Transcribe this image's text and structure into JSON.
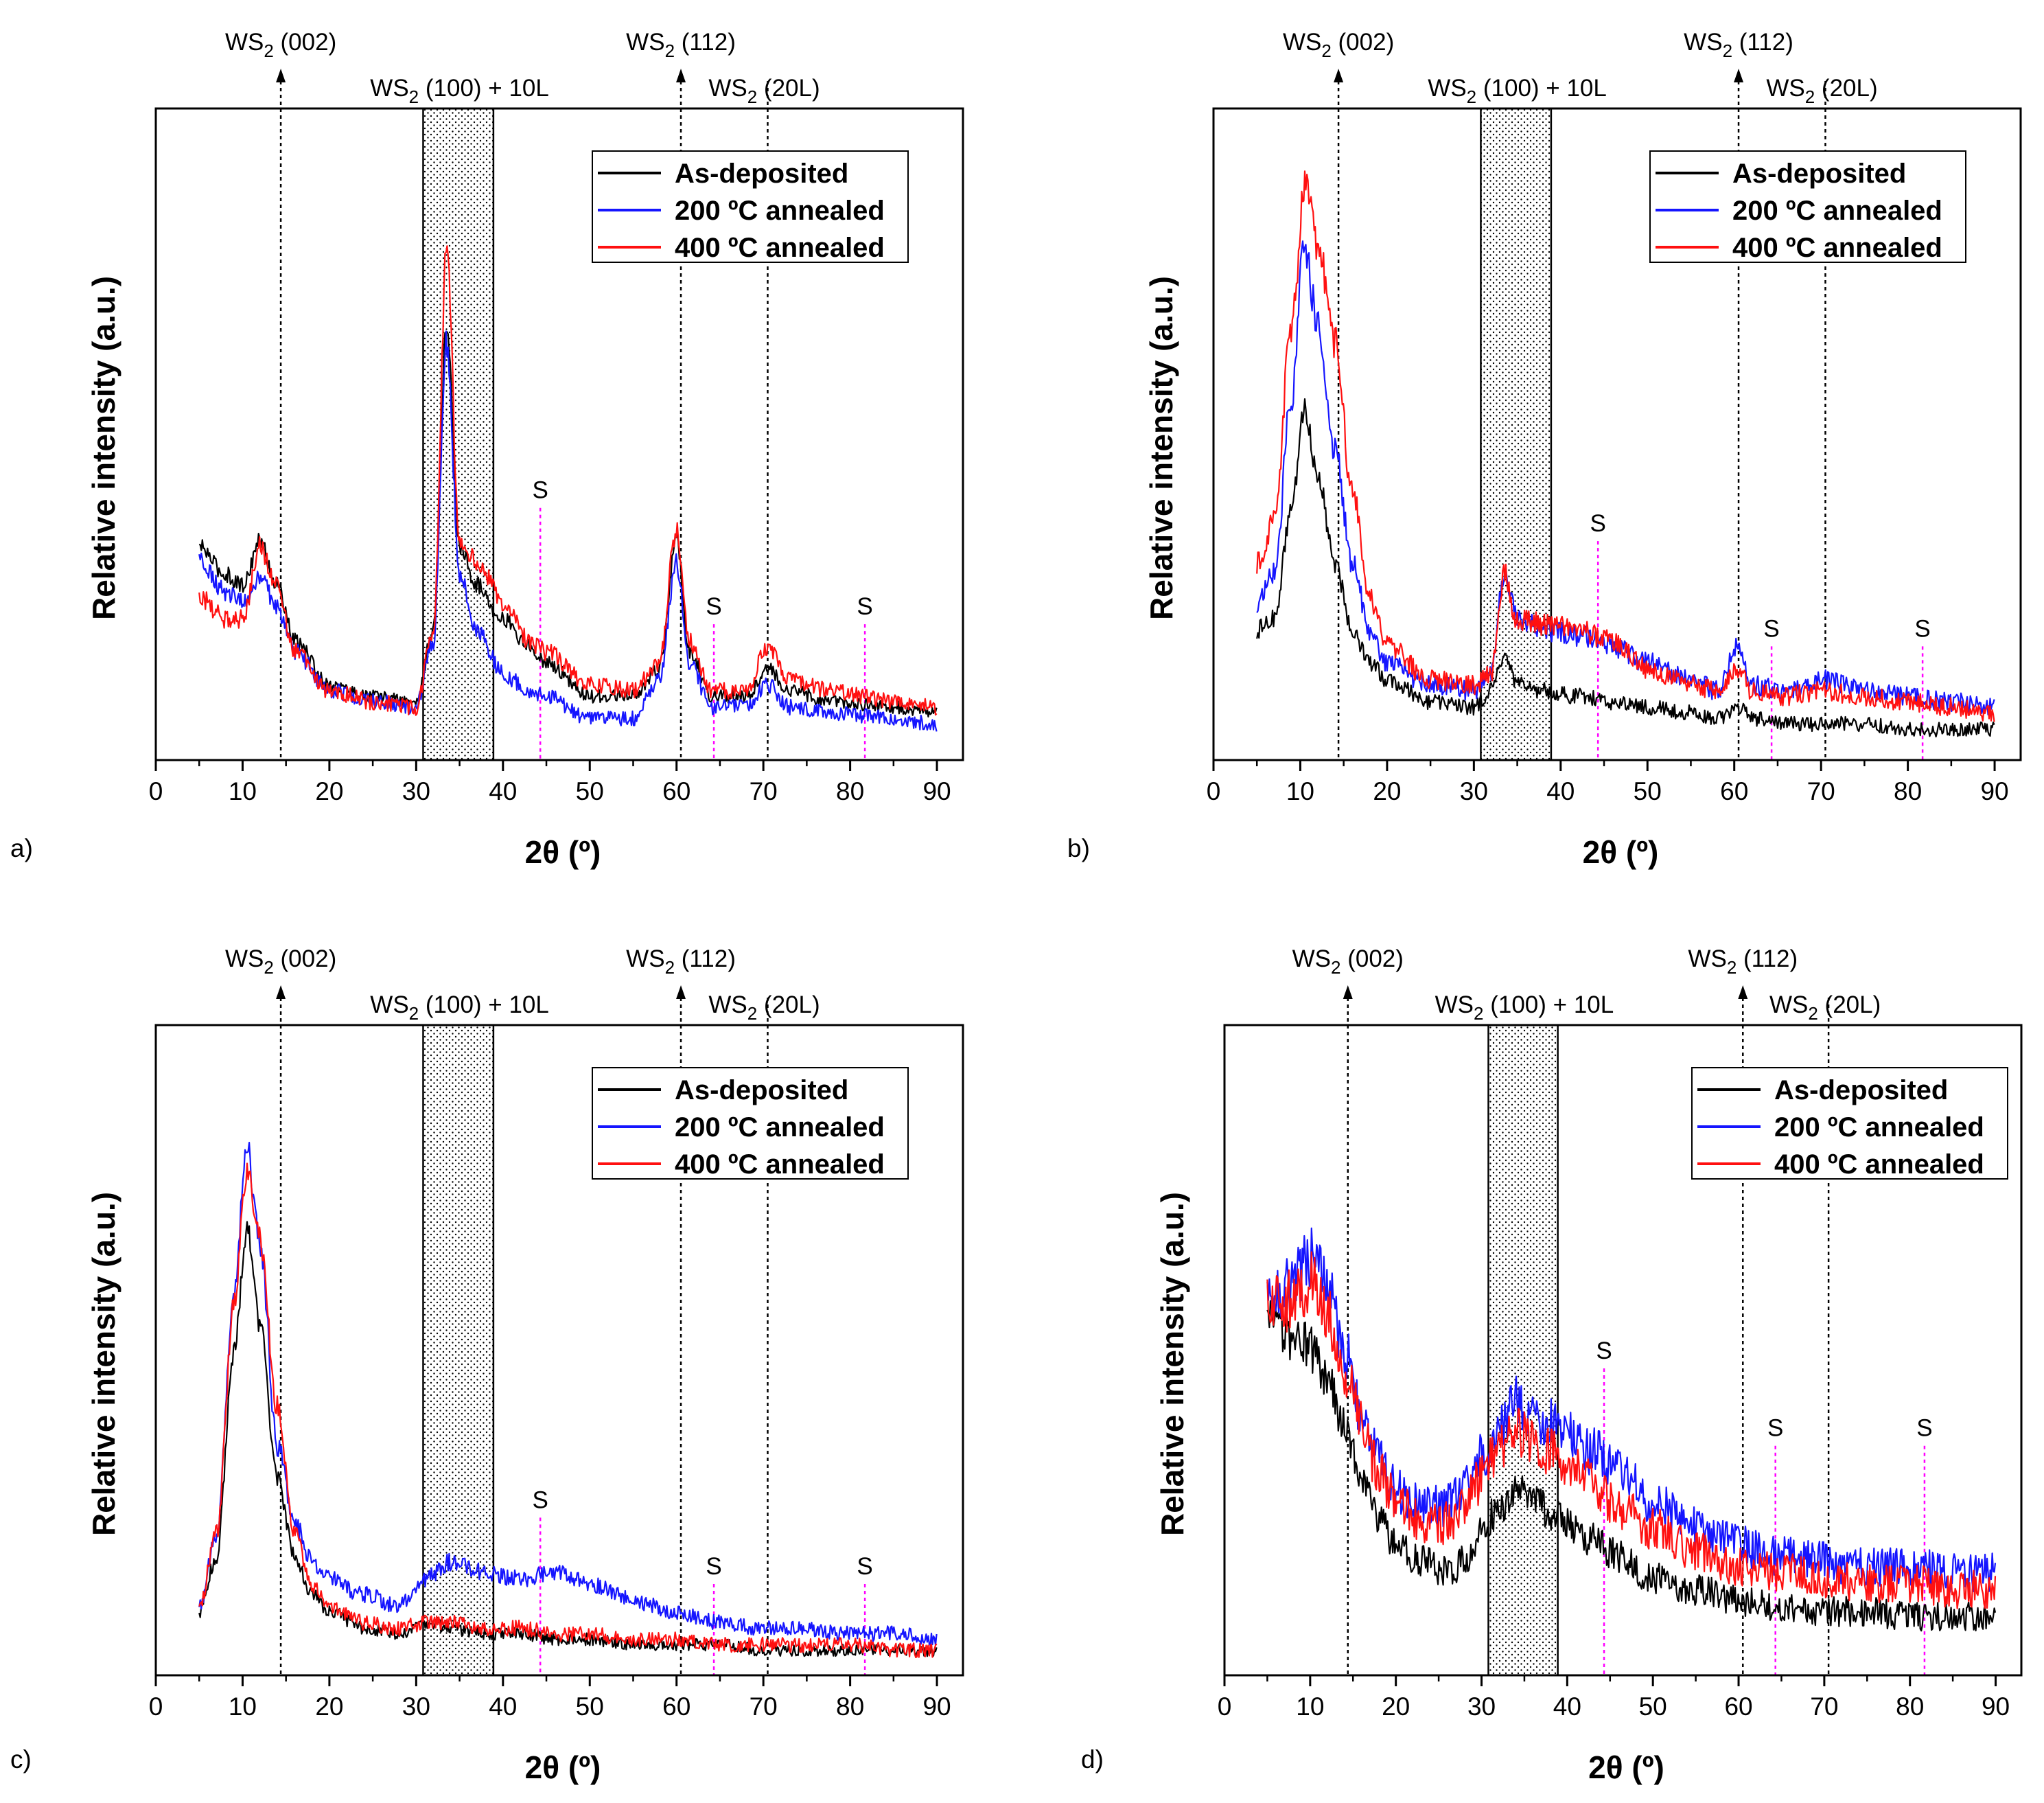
{
  "figure": {
    "description_type": "XRD patterns (4 panels)",
    "series_colors": {
      "As-deposited": "#000000",
      "200 ºC annealed": "#1515ff",
      "400 ºC annealed": "#ff1010"
    },
    "guide_line_color": "#000000",
    "substrate_line_color": "#ff00ff"
  },
  "chart_data": [
    {
      "type": "line",
      "panel_label": "a)",
      "xlabel": "2θ (º)",
      "ylabel": "Relative intensity (a.u.)",
      "xlim": [
        0,
        93
      ],
      "xticks": [
        0,
        10,
        20,
        30,
        40,
        50,
        60,
        70,
        80,
        90
      ],
      "ylim": [
        0,
        100
      ],
      "peak_labels": [
        {
          "label": "WS",
          "sub": "2",
          "suffix": " (002)",
          "x": 14.4,
          "arrow": true
        },
        {
          "label": "WS",
          "sub": "2",
          "suffix": " (100) + 10L",
          "x": 35,
          "arrow": false
        },
        {
          "label": "WS",
          "sub": "2",
          "suffix": " (112)",
          "x": 60.5,
          "arrow": true
        },
        {
          "label": "WS",
          "sub": "2",
          "suffix": " (20L)",
          "x": 70.5,
          "arrow": false
        }
      ],
      "shaded_band": [
        30.8,
        38.9
      ],
      "reference_lines": [
        14.4,
        60.5,
        70.5
      ],
      "substrate_peaks": [
        {
          "label": "S",
          "x": 44.3,
          "y": 42
        },
        {
          "label": "S",
          "x": 64.3,
          "y": 21
        },
        {
          "label": "S",
          "x": 81.7,
          "y": 21
        }
      ],
      "legend": [
        "As-deposited",
        "200 ºC annealed",
        "400 ºC annealed"
      ],
      "series": [
        {
          "name": "As-deposited",
          "x": [
            5,
            8,
            10,
            12,
            14,
            16,
            20,
            25,
            30,
            32,
            33.5,
            35,
            37,
            40,
            43,
            45,
            50,
            55,
            58,
            60,
            61.5,
            64,
            68,
            70.5,
            73,
            78,
            85,
            90
          ],
          "values": [
            35,
            30,
            28,
            36,
            28,
            18,
            10,
            8,
            7,
            20,
            75,
            35,
            28,
            22,
            17,
            14,
            8,
            8,
            13,
            36,
            16,
            8,
            8,
            13,
            9,
            7,
            6,
            5
          ]
        },
        {
          "name": "200 ºC annealed",
          "x": [
            5,
            8,
            10,
            12,
            14,
            16,
            20,
            25,
            30,
            32,
            33.5,
            35,
            37,
            40,
            43,
            45,
            50,
            55,
            58,
            60,
            61.5,
            64,
            68,
            70.5,
            73,
            78,
            85,
            90
          ],
          "values": [
            33,
            27,
            25,
            29,
            24,
            16,
            9,
            7,
            6,
            18,
            72,
            30,
            20,
            12,
            9,
            8,
            4,
            4,
            11,
            32,
            14,
            6,
            6,
            10,
            6,
            5,
            4,
            3
          ]
        },
        {
          "name": "400 ºC annealed",
          "x": [
            5,
            8,
            10,
            12,
            14,
            16,
            20,
            25,
            30,
            32,
            33.5,
            35,
            37,
            40,
            43,
            45,
            50,
            55,
            58,
            60,
            61.5,
            64,
            68,
            70.5,
            73,
            78,
            85,
            90
          ],
          "values": [
            26,
            22,
            22,
            35,
            28,
            16,
            9,
            7,
            6,
            20,
            88,
            36,
            32,
            25,
            18,
            16,
            10,
            9,
            14,
            38,
            18,
            9,
            9,
            17,
            11,
            9,
            7,
            6
          ]
        }
      ]
    },
    {
      "type": "line",
      "panel_label": "b)",
      "xlabel": "2θ (º)",
      "ylabel": "Relative intensity (a.u.)",
      "xlim": [
        0,
        93
      ],
      "xticks": [
        0,
        10,
        20,
        30,
        40,
        50,
        60,
        70,
        80,
        90
      ],
      "ylim": [
        0,
        100
      ],
      "peak_labels": [
        {
          "label": "WS",
          "sub": "2",
          "suffix": " (002)",
          "x": 14.4,
          "arrow": true
        },
        {
          "label": "WS",
          "sub": "2",
          "suffix": " (100) + 10L",
          "x": 35,
          "arrow": false
        },
        {
          "label": "WS",
          "sub": "2",
          "suffix": " (112)",
          "x": 60.5,
          "arrow": true
        },
        {
          "label": "WS",
          "sub": "2",
          "suffix": " (20L)",
          "x": 70.5,
          "arrow": false
        }
      ],
      "shaded_band": [
        30.8,
        38.9
      ],
      "reference_lines": [
        14.4,
        60.5,
        70.5
      ],
      "substrate_peaks": [
        {
          "label": "S",
          "x": 44.3,
          "y": 36
        },
        {
          "label": "S",
          "x": 64.3,
          "y": 17
        },
        {
          "label": "S",
          "x": 81.7,
          "y": 17
        }
      ],
      "legend": [
        "As-deposited",
        "200 ºC annealed",
        "400 ºC annealed"
      ],
      "series": [
        {
          "name": "As-deposited",
          "x": [
            5,
            7,
            9,
            10.5,
            12,
            14,
            16,
            18,
            20,
            25,
            30,
            32,
            33.5,
            35,
            38,
            42,
            46,
            50,
            55,
            58,
            60.5,
            62,
            66,
            70,
            75,
            80,
            85,
            90
          ],
          "values": [
            20,
            22,
            42,
            60,
            48,
            32,
            20,
            14,
            11,
            7,
            6,
            9,
            15,
            10,
            9,
            8,
            7,
            6,
            5,
            4,
            6,
            4,
            3,
            3,
            3,
            2,
            2,
            2
          ]
        },
        {
          "name": "200 ºC annealed",
          "x": [
            5,
            7,
            9,
            10.5,
            12,
            14,
            16,
            18,
            20,
            25,
            30,
            32,
            33.5,
            35,
            38,
            42,
            46,
            50,
            55,
            58,
            60.5,
            62,
            66,
            70,
            75,
            80,
            85,
            90
          ],
          "values": [
            25,
            30,
            62,
            90,
            75,
            52,
            32,
            20,
            14,
            10,
            9,
            12,
            30,
            22,
            20,
            19,
            17,
            14,
            11,
            9,
            17,
            10,
            9,
            11,
            9,
            8,
            7,
            6
          ]
        },
        {
          "name": "400 ºC annealed",
          "x": [
            5,
            7,
            9,
            10.5,
            12,
            14,
            16,
            18,
            20,
            25,
            30,
            32,
            33.5,
            35,
            38,
            42,
            46,
            50,
            55,
            58,
            60.5,
            62,
            66,
            70,
            75,
            80,
            85,
            90
          ],
          "values": [
            32,
            40,
            75,
            100,
            90,
            72,
            45,
            26,
            17,
            11,
            10,
            12,
            30,
            22,
            21,
            20,
            18,
            13,
            10,
            9,
            13,
            9,
            8,
            9,
            8,
            7,
            6,
            5
          ]
        }
      ]
    },
    {
      "type": "line",
      "panel_label": "c)",
      "xlabel": "2θ (º)",
      "ylabel": "Relative intensity (a.u.)",
      "xlim": [
        0,
        93
      ],
      "xticks": [
        0,
        10,
        20,
        30,
        40,
        50,
        60,
        70,
        80,
        90
      ],
      "ylim": [
        0,
        100
      ],
      "peak_labels": [
        {
          "label": "WS",
          "sub": "2",
          "suffix": " (002)",
          "x": 14.4,
          "arrow": true
        },
        {
          "label": "WS",
          "sub": "2",
          "suffix": " (100) + 10L",
          "x": 35,
          "arrow": false
        },
        {
          "label": "WS",
          "sub": "2",
          "suffix": " (112)",
          "x": 60.5,
          "arrow": true
        },
        {
          "label": "WS",
          "sub": "2",
          "suffix": " (20L)",
          "x": 70.5,
          "arrow": false
        }
      ],
      "shaded_band": [
        30.8,
        38.9
      ],
      "reference_lines": [
        14.4,
        60.5,
        70.5
      ],
      "substrate_peaks": [
        {
          "label": "S",
          "x": 44.3,
          "y": 25
        },
        {
          "label": "S",
          "x": 64.3,
          "y": 13
        },
        {
          "label": "S",
          "x": 81.7,
          "y": 13
        }
      ],
      "legend": [
        "As-deposited",
        "200 ºC annealed",
        "400 ºC annealed"
      ],
      "series": [
        {
          "name": "As-deposited",
          "x": [
            5,
            7,
            9,
            10.5,
            12,
            14,
            16,
            18,
            20,
            24,
            28,
            31,
            34,
            38,
            42,
            46,
            50,
            55,
            60,
            65,
            70,
            75,
            80,
            85,
            90
          ],
          "values": [
            8,
            18,
            55,
            77,
            60,
            32,
            18,
            11,
            8,
            5,
            4,
            6,
            5,
            4,
            4,
            3,
            3,
            2,
            2,
            2,
            1,
            1,
            1,
            1,
            1
          ]
        },
        {
          "name": "200 ºC annealed",
          "x": [
            5,
            7,
            9,
            10.5,
            12,
            14,
            16,
            18,
            20,
            24,
            28,
            31,
            34,
            38,
            42,
            46,
            50,
            55,
            60,
            65,
            70,
            75,
            80,
            85,
            90
          ],
          "values": [
            9,
            22,
            65,
            92,
            75,
            38,
            24,
            17,
            14,
            11,
            9,
            14,
            17,
            15,
            14,
            15,
            13,
            10,
            8,
            6,
            5,
            5,
            4,
            4,
            3
          ]
        },
        {
          "name": "400 ºC annealed",
          "x": [
            5,
            7,
            9,
            10.5,
            12,
            14,
            16,
            18,
            20,
            24,
            28,
            31,
            34,
            38,
            42,
            46,
            50,
            55,
            60,
            65,
            70,
            75,
            80,
            85,
            90
          ],
          "values": [
            9,
            22,
            63,
            87,
            75,
            45,
            22,
            13,
            9,
            6,
            5,
            6,
            6,
            5,
            5,
            4,
            4,
            3,
            3,
            2,
            2,
            2,
            2,
            1,
            1
          ]
        }
      ]
    },
    {
      "type": "line",
      "panel_label": "d)",
      "xlabel": "2θ (º)",
      "ylabel": "Relative intensity (a.u.)",
      "xlim": [
        0,
        93
      ],
      "xticks": [
        0,
        10,
        20,
        30,
        40,
        50,
        60,
        70,
        80,
        90
      ],
      "ylim": [
        0,
        100
      ],
      "peak_labels": [
        {
          "label": "WS",
          "sub": "2",
          "suffix": " (002)",
          "x": 14.4,
          "arrow": true
        },
        {
          "label": "WS",
          "sub": "2",
          "suffix": " (100) + 10L",
          "x": 35,
          "arrow": false
        },
        {
          "label": "WS",
          "sub": "2",
          "suffix": " (112)",
          "x": 60.5,
          "arrow": true
        },
        {
          "label": "WS",
          "sub": "2",
          "suffix": " (20L)",
          "x": 70.5,
          "arrow": false
        }
      ],
      "shaded_band": [
        30.8,
        38.9
      ],
      "reference_lines": [
        14.4,
        60.5,
        70.5
      ],
      "substrate_peaks": [
        {
          "label": "S",
          "x": 44.3,
          "y": 52
        },
        {
          "label": "S",
          "x": 64.3,
          "y": 38
        },
        {
          "label": "S",
          "x": 81.7,
          "y": 38
        }
      ],
      "legend": [
        "As-deposited",
        "200 ºC annealed",
        "400 ºC annealed"
      ],
      "series": [
        {
          "name": "As-deposited",
          "x": [
            5,
            7,
            9,
            10.5,
            12,
            14,
            16,
            18,
            20,
            23,
            26,
            28,
            30,
            32,
            34,
            36,
            38,
            40,
            43,
            46,
            50,
            55,
            60,
            65,
            70,
            75,
            80,
            85,
            90
          ],
          "values": [
            60,
            58,
            57,
            55,
            50,
            42,
            33,
            25,
            20,
            17,
            15,
            17,
            22,
            27,
            30,
            28,
            26,
            24,
            21,
            18,
            14,
            12,
            10,
            9,
            8,
            8,
            7,
            7,
            7
          ]
        },
        {
          "name": "200 ºC annealed",
          "x": [
            5,
            7,
            9,
            10.5,
            12,
            14,
            16,
            18,
            20,
            23,
            26,
            28,
            30,
            32,
            34,
            36,
            38,
            40,
            43,
            46,
            50,
            55,
            60,
            65,
            70,
            75,
            80,
            85,
            90
          ],
          "values": [
            64,
            66,
            70,
            72,
            66,
            55,
            44,
            36,
            30,
            27,
            27,
            30,
            36,
            42,
            46,
            44,
            42,
            40,
            37,
            33,
            28,
            23,
            20,
            18,
            17,
            16,
            16,
            15,
            15
          ]
        },
        {
          "name": "400 ºC annealed",
          "x": [
            5,
            7,
            9,
            10.5,
            12,
            14,
            16,
            18,
            20,
            23,
            26,
            28,
            30,
            32,
            34,
            36,
            38,
            40,
            43,
            46,
            50,
            55,
            60,
            65,
            70,
            75,
            80,
            85,
            90
          ],
          "values": [
            64,
            64,
            66,
            68,
            62,
            52,
            42,
            33,
            28,
            24,
            24,
            27,
            32,
            38,
            41,
            39,
            37,
            35,
            31,
            27,
            23,
            19,
            16,
            15,
            14,
            13,
            13,
            12,
            12
          ]
        }
      ]
    }
  ]
}
